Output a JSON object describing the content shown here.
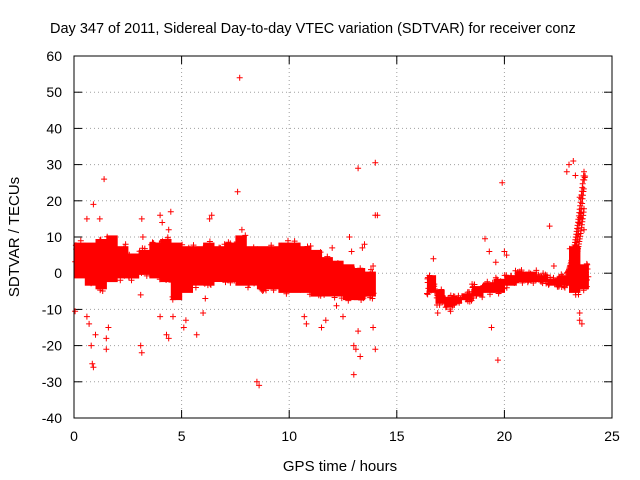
{
  "chart_data": {
    "type": "scatter",
    "title": "Day 347 of 2011, Sidereal Day-to-day VTEC variation (SDTVAR) for receiver conz",
    "xlabel": "GPS time / hours",
    "ylabel": "SDTVAR / TECUs",
    "xlim": [
      0,
      25
    ],
    "ylim": [
      -40,
      60
    ],
    "xticks": [
      0,
      5,
      10,
      15,
      20,
      25
    ],
    "yticks": [
      -40,
      -30,
      -20,
      -10,
      0,
      10,
      20,
      30,
      40,
      50,
      60
    ],
    "grid": true,
    "marker": "+",
    "color": "#ff0000",
    "series": [
      {
        "name": "SDTVAR",
        "bands": [
          {
            "x": [
              0.0,
              0.5
            ],
            "y": [
              -2,
              9
            ]
          },
          {
            "x": [
              0.5,
              1.0
            ],
            "y": [
              -4,
              9
            ]
          },
          {
            "x": [
              1.0,
              1.5
            ],
            "y": [
              -5,
              10
            ]
          },
          {
            "x": [
              1.5,
              2.0
            ],
            "y": [
              -3,
              11
            ]
          },
          {
            "x": [
              2.0,
              2.5
            ],
            "y": [
              -2,
              8
            ]
          },
          {
            "x": [
              2.5,
              3.0
            ],
            "y": [
              -2,
              6
            ]
          },
          {
            "x": [
              3.0,
              3.5
            ],
            "y": [
              -1,
              7
            ]
          },
          {
            "x": [
              3.5,
              4.0
            ],
            "y": [
              -2,
              9
            ]
          },
          {
            "x": [
              4.0,
              4.5
            ],
            "y": [
              -3,
              10
            ]
          },
          {
            "x": [
              4.5,
              5.0
            ],
            "y": [
              -8,
              9
            ]
          },
          {
            "x": [
              5.0,
              5.5
            ],
            "y": [
              -6,
              8
            ]
          },
          {
            "x": [
              5.5,
              6.0
            ],
            "y": [
              -4,
              8
            ]
          },
          {
            "x": [
              6.0,
              6.5
            ],
            "y": [
              -4,
              9
            ]
          },
          {
            "x": [
              6.5,
              7.0
            ],
            "y": [
              -3,
              8
            ]
          },
          {
            "x": [
              7.0,
              7.5
            ],
            "y": [
              -3,
              9
            ]
          },
          {
            "x": [
              7.5,
              8.0
            ],
            "y": [
              -4,
              11
            ]
          },
          {
            "x": [
              8.0,
              8.5
            ],
            "y": [
              -4,
              8
            ]
          },
          {
            "x": [
              8.5,
              9.0
            ],
            "y": [
              -5,
              8
            ]
          },
          {
            "x": [
              9.0,
              9.5
            ],
            "y": [
              -5,
              8
            ]
          },
          {
            "x": [
              9.5,
              10.0
            ],
            "y": [
              -6,
              9
            ]
          },
          {
            "x": [
              10.0,
              10.5
            ],
            "y": [
              -6,
              9
            ]
          },
          {
            "x": [
              10.5,
              11.0
            ],
            "y": [
              -6,
              8
            ]
          },
          {
            "x": [
              11.0,
              11.5
            ],
            "y": [
              -7,
              7
            ]
          },
          {
            "x": [
              11.5,
              12.0
            ],
            "y": [
              -7,
              5
            ]
          },
          {
            "x": [
              12.0,
              12.5
            ],
            "y": [
              -7,
              4
            ]
          },
          {
            "x": [
              12.5,
              13.0
            ],
            "y": [
              -8,
              3
            ]
          },
          {
            "x": [
              13.0,
              13.5
            ],
            "y": [
              -8,
              2
            ]
          },
          {
            "x": [
              13.5,
              14.0
            ],
            "y": [
              -7,
              1
            ]
          },
          {
            "x": [
              16.4,
              16.8
            ],
            "y": [
              -6,
              0
            ]
          },
          {
            "x": [
              16.8,
              17.2
            ],
            "y": [
              -9,
              -4
            ]
          },
          {
            "x": [
              17.2,
              17.6
            ],
            "y": [
              -10,
              -6
            ]
          },
          {
            "x": [
              17.6,
              18.0
            ],
            "y": [
              -9,
              -6
            ]
          },
          {
            "x": [
              18.0,
              18.5
            ],
            "y": [
              -8,
              -5
            ]
          },
          {
            "x": [
              18.5,
              19.0
            ],
            "y": [
              -7,
              -3
            ]
          },
          {
            "x": [
              19.0,
              19.5
            ],
            "y": [
              -6,
              -2
            ]
          },
          {
            "x": [
              19.5,
              20.0
            ],
            "y": [
              -6,
              -1
            ]
          },
          {
            "x": [
              20.0,
              20.5
            ],
            "y": [
              -4,
              0
            ]
          },
          {
            "x": [
              20.5,
              21.0
            ],
            "y": [
              -3,
              1
            ]
          },
          {
            "x": [
              21.0,
              21.5
            ],
            "y": [
              -3,
              1
            ]
          },
          {
            "x": [
              21.5,
              22.0
            ],
            "y": [
              -3,
              0
            ]
          },
          {
            "x": [
              22.0,
              22.5
            ],
            "y": [
              -4,
              -1
            ]
          },
          {
            "x": [
              22.5,
              23.0
            ],
            "y": [
              -4,
              0
            ]
          },
          {
            "x": [
              23.0,
              23.5
            ],
            "y": [
              -6,
              8
            ]
          },
          {
            "x": [
              23.5,
              23.9
            ],
            "y": [
              -5,
              3
            ]
          }
        ],
        "spike": {
          "x": [
            22.9,
            23.7
          ],
          "y_low": [
            0,
            28
          ],
          "y_high": [
            -3,
            5
          ]
        },
        "points": [
          [
            0.05,
            -10.5
          ],
          [
            0.6,
            -12
          ],
          [
            0.7,
            -14
          ],
          [
            0.8,
            -20
          ],
          [
            0.85,
            -25
          ],
          [
            0.9,
            -26
          ],
          [
            1.0,
            -17
          ],
          [
            0.6,
            15
          ],
          [
            0.9,
            19
          ],
          [
            1.4,
            26
          ],
          [
            1.5,
            -18
          ],
          [
            1.5,
            -21
          ],
          [
            1.6,
            -15
          ],
          [
            1.2,
            15
          ],
          [
            3.1,
            -6
          ],
          [
            3.1,
            -20
          ],
          [
            3.15,
            -22
          ],
          [
            3.15,
            15
          ],
          [
            3.2,
            10
          ],
          [
            4.0,
            16
          ],
          [
            4.1,
            14
          ],
          [
            4.4,
            12
          ],
          [
            4.5,
            17
          ],
          [
            4.0,
            -12
          ],
          [
            4.3,
            -17
          ],
          [
            4.4,
            -18
          ],
          [
            4.6,
            -12
          ],
          [
            5.1,
            -15
          ],
          [
            5.2,
            -13
          ],
          [
            5.7,
            -17
          ],
          [
            6.0,
            -11
          ],
          [
            6.1,
            -7
          ],
          [
            6.3,
            15
          ],
          [
            6.4,
            16
          ],
          [
            6.8,
            7
          ],
          [
            7.0,
            8
          ],
          [
            7.6,
            22.5
          ],
          [
            7.7,
            54
          ],
          [
            7.8,
            12
          ],
          [
            8.5,
            -30
          ],
          [
            8.6,
            -31
          ],
          [
            10.7,
            -12
          ],
          [
            10.8,
            -14
          ],
          [
            11.5,
            -15
          ],
          [
            11.7,
            -13
          ],
          [
            12.0,
            7
          ],
          [
            12.2,
            -9
          ],
          [
            12.5,
            -12
          ],
          [
            12.8,
            10
          ],
          [
            12.9,
            6
          ],
          [
            13.0,
            -20
          ],
          [
            13.1,
            -21
          ],
          [
            13.0,
            -28
          ],
          [
            13.2,
            29
          ],
          [
            13.3,
            -23
          ],
          [
            13.2,
            -16
          ],
          [
            13.4,
            7
          ],
          [
            13.5,
            8
          ],
          [
            13.8,
            1
          ],
          [
            13.9,
            -15
          ],
          [
            14.0,
            30.5
          ],
          [
            14.0,
            16
          ],
          [
            14.1,
            16
          ],
          [
            14.0,
            -21
          ],
          [
            13.9,
            2
          ],
          [
            16.7,
            4
          ],
          [
            16.9,
            -11
          ],
          [
            17.5,
            -10.5
          ],
          [
            18.5,
            -3
          ],
          [
            19.1,
            9.5
          ],
          [
            19.3,
            6
          ],
          [
            19.4,
            -15
          ],
          [
            19.6,
            3
          ],
          [
            19.7,
            -24
          ],
          [
            19.9,
            25
          ],
          [
            20.0,
            6
          ],
          [
            20.1,
            5
          ],
          [
            21.8,
            0
          ],
          [
            22.1,
            13
          ],
          [
            22.3,
            2
          ],
          [
            22.9,
            28
          ],
          [
            23.0,
            30
          ],
          [
            23.2,
            31
          ],
          [
            23.3,
            27
          ],
          [
            23.5,
            21
          ],
          [
            23.6,
            15
          ],
          [
            23.7,
            12
          ],
          [
            23.5,
            -11
          ],
          [
            23.5,
            -13
          ],
          [
            23.6,
            -14
          ],
          [
            23.8,
            -2
          ],
          [
            23.7,
            -3
          ],
          [
            23.9,
            -1
          ]
        ]
      }
    ]
  }
}
